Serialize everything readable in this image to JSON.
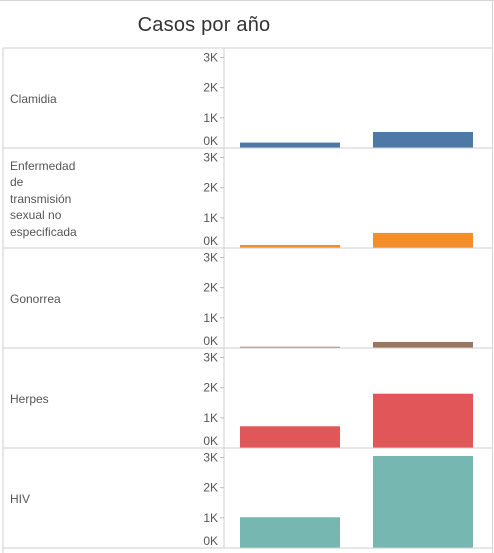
{
  "chart_data": {
    "type": "bar",
    "title": "Casos por año",
    "panels": [
      {
        "category": "Clamidia",
        "values": [
          180,
          530
        ],
        "color": "#4e79a7"
      },
      {
        "category": "Enfermedad de transmisión sexual no especificada",
        "label_lines": [
          "Enfermedad",
          "de",
          "transmisión",
          "sexual no",
          "especificada"
        ],
        "values": [
          100,
          500
        ],
        "color": "#f28e2b"
      },
      {
        "category": "Gonorrea",
        "values": [
          40,
          200
        ],
        "color": "#9c755f"
      },
      {
        "category": "Herpes",
        "values": [
          720,
          1800
        ],
        "color": "#e15759"
      },
      {
        "category": "HIV",
        "values": [
          1020,
          3050
        ],
        "color": "#76b7b2"
      }
    ],
    "y_ticks": [
      "0K",
      "1K",
      "2K",
      "3K"
    ],
    "y_tick_values": [
      0,
      1000,
      2000,
      3000
    ],
    "ylim": [
      0,
      3050
    ],
    "grid": false,
    "legend": "none"
  }
}
